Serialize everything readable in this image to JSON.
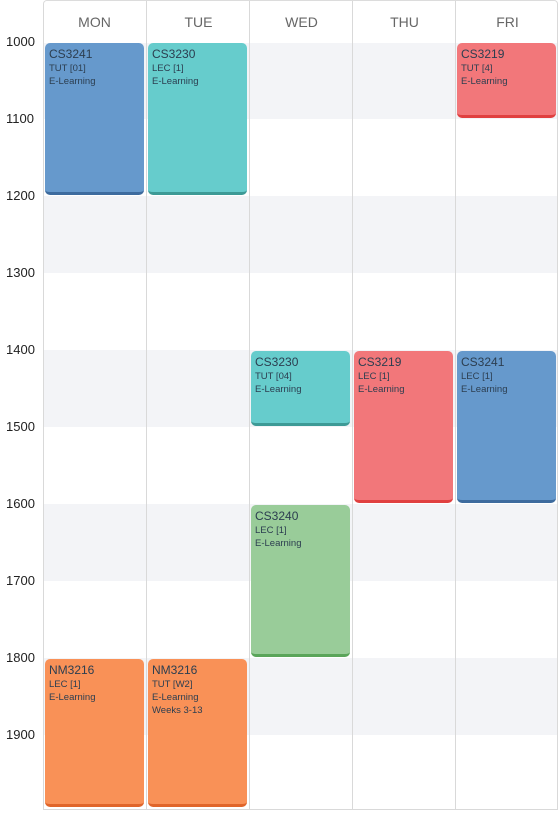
{
  "timetable": {
    "days": [
      "MON",
      "TUE",
      "WED",
      "THU",
      "FRI"
    ],
    "hours": [
      "1000",
      "1100",
      "1200",
      "1300",
      "1400",
      "1500",
      "1600",
      "1700",
      "1800",
      "1900"
    ],
    "events": [
      {
        "id": "e1",
        "day": "MON",
        "start": 1000,
        "end": 1200,
        "code": "CS3241",
        "lines": [
          "TUT [01]",
          "E-Learning"
        ],
        "color": "#6699cc",
        "accent": "#3d6b9e"
      },
      {
        "id": "e2",
        "day": "TUE",
        "start": 1000,
        "end": 1200,
        "code": "CS3230",
        "lines": [
          "LEC [1]",
          "E-Learning"
        ],
        "color": "#66cccc",
        "accent": "#3d9a96"
      },
      {
        "id": "e3",
        "day": "FRI",
        "start": 1000,
        "end": 1100,
        "code": "CS3219",
        "lines": [
          "TUT [4]",
          "E-Learning"
        ],
        "color": "#f2777a",
        "accent": "#e04040"
      },
      {
        "id": "e4",
        "day": "WED",
        "start": 1400,
        "end": 1500,
        "code": "CS3230",
        "lines": [
          "TUT [04]",
          "E-Learning"
        ],
        "color": "#66cccc",
        "accent": "#3d9a96"
      },
      {
        "id": "e5",
        "day": "THU",
        "start": 1400,
        "end": 1600,
        "code": "CS3219",
        "lines": [
          "LEC [1]",
          "E-Learning"
        ],
        "color": "#f2777a",
        "accent": "#e04040"
      },
      {
        "id": "e6",
        "day": "FRI",
        "start": 1400,
        "end": 1600,
        "code": "CS3241",
        "lines": [
          "LEC [1]",
          "E-Learning"
        ],
        "color": "#6699cc",
        "accent": "#3d6b9e"
      },
      {
        "id": "e7",
        "day": "WED",
        "start": 1600,
        "end": 1800,
        "code": "CS3240",
        "lines": [
          "LEC [1]",
          "E-Learning"
        ],
        "color": "#99cc99",
        "accent": "#5aa55a"
      },
      {
        "id": "e8",
        "day": "MON",
        "start": 1800,
        "end": 2000,
        "code": "NM3216",
        "lines": [
          "LEC [1]",
          "E-Learning"
        ],
        "color": "#f99157",
        "accent": "#e0652a"
      },
      {
        "id": "e9",
        "day": "TUE",
        "start": 1800,
        "end": 2000,
        "code": "NM3216",
        "lines": [
          "TUT [W2]",
          "E-Learning",
          "Weeks 3-13"
        ],
        "color": "#f99157",
        "accent": "#e0652a"
      }
    ]
  }
}
